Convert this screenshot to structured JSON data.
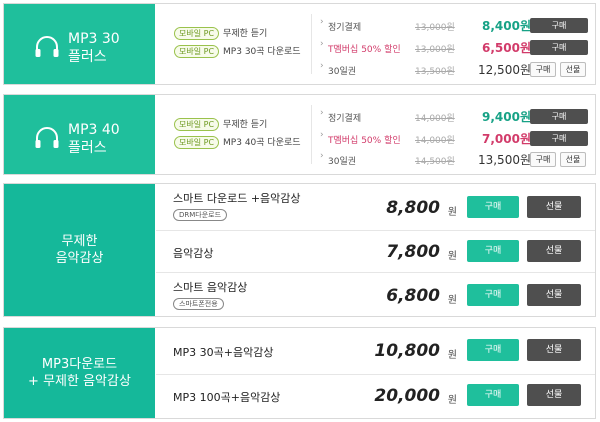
{
  "plan30": {
    "title_line1": "MP3 30",
    "title_line2": "플러스",
    "features": [
      {
        "badge": "모바일 PC",
        "text": "무제한 듣기"
      },
      {
        "badge": "모바일 PC",
        "text": "MP3 30곡 다운로드"
      }
    ],
    "prices": [
      {
        "name": "정기결제",
        "old": "13,000원",
        "new": "8,400원",
        "btn": "구매"
      },
      {
        "name": "T멤버십 50% 할인",
        "old": "13,000원",
        "new": "6,500원",
        "btn": "구매"
      },
      {
        "name": "30일권",
        "old": "13,500원",
        "new": "12,500원",
        "btn": "구매",
        "btn2": "선물"
      }
    ]
  },
  "plan40": {
    "title_line1": "MP3 40",
    "title_line2": "플러스",
    "features": [
      {
        "badge": "모바일 PC",
        "text": "무제한 듣기"
      },
      {
        "badge": "모바일 PC",
        "text": "MP3 40곡 다운로드"
      }
    ],
    "prices": [
      {
        "name": "정기결제",
        "old": "14,000원",
        "new": "9,400원",
        "btn": "구매"
      },
      {
        "name": "T멤버십 50% 할인",
        "old": "14,000원",
        "new": "7,000원",
        "btn": "구매"
      },
      {
        "name": "30일권",
        "old": "14,500원",
        "new": "13,500원",
        "btn": "구매",
        "btn2": "선물"
      }
    ]
  },
  "unlimited": {
    "title_line1": "무제한",
    "title_line2": "음악감상",
    "rows": [
      {
        "label": "스마트 다운로드 +음악감상",
        "sub": "DRM다운로드",
        "price": "8,800",
        "unit": "원",
        "buy": "구매",
        "gift": "선물"
      },
      {
        "label": "음악감상",
        "sub": "",
        "price": "7,800",
        "unit": "원",
        "buy": "구매",
        "gift": "선물"
      },
      {
        "label": "스마트 음악감상",
        "sub": "스마트폰전용",
        "price": "6,800",
        "unit": "원",
        "buy": "구매",
        "gift": "선물"
      }
    ]
  },
  "combo": {
    "title_line1": "MP3다운로드",
    "title_line2": "+ 무제한 음악감상",
    "rows": [
      {
        "label": "MP3 30곡+음악감상",
        "price": "10,800",
        "unit": "원",
        "buy": "구매",
        "gift": "선물"
      },
      {
        "label": "MP3 100곡+음악감상",
        "price": "20,000",
        "unit": "원",
        "buy": "구매",
        "gift": "선물"
      }
    ]
  },
  "icons": {
    "plan": "headphones-icon",
    "arrow": "›"
  },
  "colors": {
    "accent": "#1fbf9c",
    "dark_button": "#4f4f4f",
    "discount": "#d23b6a"
  }
}
